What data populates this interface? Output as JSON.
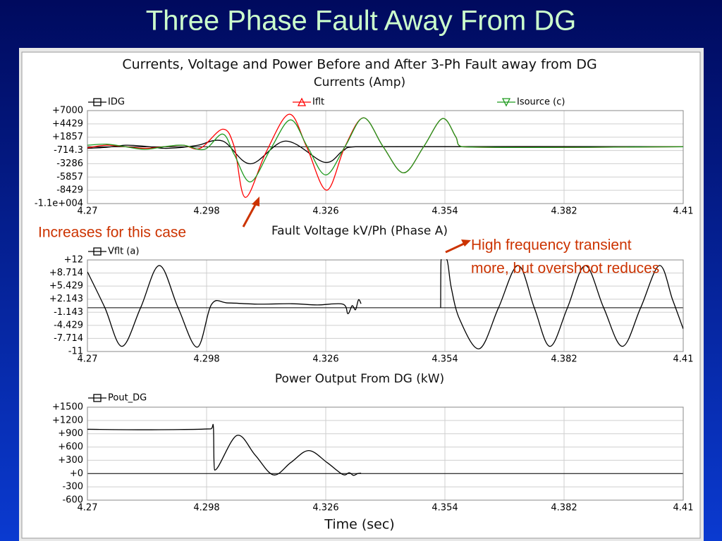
{
  "title": "Three Phase Fault Away From DG",
  "panel_title": "Currents, Voltage and Power Before and After 3-Ph Fault away from DG",
  "annotations": [
    "Increases for this case",
    "High frequency transient",
    "more, but overshoot reduces"
  ],
  "chart_data": [
    {
      "type": "line",
      "title": "Currents (Amp)",
      "xlim": [
        4.27,
        4.41
      ],
      "xticks": [
        4.27,
        4.298,
        4.326,
        4.354,
        4.382,
        4.41
      ],
      "ylim": [
        -11000,
        7000
      ],
      "yticks": [
        {
          "value": 7000,
          "label": "+7000"
        },
        {
          "value": 4429,
          "label": "+4429"
        },
        {
          "value": 1857,
          "label": "+1857"
        },
        {
          "value": -714.3,
          "label": "-714.3"
        },
        -3286,
        -5857,
        -8429,
        {
          "value": -11000,
          "label": "-1.1e+004"
        }
      ],
      "grid": true,
      "series": [
        {
          "name": "IDG",
          "color": "#000000",
          "marker": "square",
          "x": [
            4.27,
            4.2745,
            4.279,
            4.2835,
            4.288,
            4.2925,
            4.296,
            4.3018,
            4.3083,
            4.3166,
            4.3257,
            4.33,
            4.333,
            4.41
          ],
          "values": [
            -300,
            -100,
            300,
            100,
            -300,
            -100,
            300,
            1100,
            -3300,
            1100,
            -3000,
            -800,
            0,
            0
          ]
        },
        {
          "name": "Iflt",
          "color": "#ff0000",
          "marker": "triangle-up",
          "x": [
            4.27,
            4.2745,
            4.279,
            4.2835,
            4.288,
            4.2925,
            4.2965,
            4.3018,
            4.3045,
            4.3071,
            4.312,
            4.3174,
            4.3215,
            4.3262,
            4.3305,
            4.3349,
            4.3395,
            4.3443,
            4.349,
            4.3534,
            4.3565,
            4.358,
            4.41
          ],
          "values": [
            -200,
            300,
            0,
            -300,
            0,
            300,
            -300,
            3400,
            0,
            -9800,
            -1000,
            6300,
            0,
            -8400,
            0,
            5600,
            0,
            -5050,
            0,
            5450,
            2000,
            0,
            0
          ]
        },
        {
          "name": "Isource (c)",
          "color": "#1e9a1e",
          "marker": "triangle-down",
          "x": [
            4.27,
            4.2745,
            4.279,
            4.2835,
            4.288,
            4.2925,
            4.2975,
            4.3018,
            4.3045,
            4.3083,
            4.313,
            4.3177,
            4.3217,
            4.326,
            4.3305,
            4.3349,
            4.3395,
            4.3443,
            4.349,
            4.3534,
            4.3565,
            4.358,
            4.41
          ],
          "values": [
            300,
            500,
            0,
            -500,
            0,
            300,
            -500,
            2450,
            -1500,
            -6800,
            -500,
            5200,
            0,
            -5450,
            0,
            5600,
            0,
            -5050,
            0,
            5450,
            2000,
            0,
            0
          ]
        }
      ]
    },
    {
      "type": "line",
      "title": "Fault Voltage kV/Ph (Phase A)",
      "xlim": [
        4.27,
        4.41
      ],
      "xticks": [
        4.27,
        4.298,
        4.326,
        4.354,
        4.382,
        4.41
      ],
      "ylim": [
        -11,
        12
      ],
      "yticks": [
        {
          "value": 12,
          "label": "+12"
        },
        {
          "value": 8.714,
          "label": "+8.714"
        },
        {
          "value": 5.429,
          "label": "+5.429"
        },
        {
          "value": 2.143,
          "label": "+2.143"
        },
        -1.143,
        -4.429,
        -7.714,
        -11
      ],
      "grid": true,
      "series": [
        {
          "name": "Vflt (a)",
          "color": "#000000",
          "marker": "square",
          "x": [
            4.27,
            4.2741,
            4.2781,
            4.2825,
            4.2869,
            4.2913,
            4.2958,
            4.2992,
            4.303,
            4.31,
            4.318,
            4.324,
            4.33,
            4.3312,
            4.3322,
            4.333,
            4.3337,
            4.3343,
            4.344,
            4.353,
            4.3531,
            4.3545,
            4.3555,
            4.3575,
            4.3621,
            4.3666,
            4.3712,
            4.375,
            4.3787,
            4.3828,
            4.387,
            4.3913,
            4.3957,
            4.4,
            4.4044,
            4.4075,
            4.41
          ],
          "values": [
            9,
            0,
            -9.7,
            0,
            10.6,
            0,
            -9.9,
            0.9,
            1.2,
            0.9,
            1.0,
            0.7,
            0.9,
            -1.5,
            0.5,
            -0.5,
            2,
            1.0,
            null,
            0,
            12,
            12,
            5,
            -3,
            -10.3,
            0,
            10.6,
            0,
            -9.7,
            0,
            10.6,
            0,
            -9.7,
            0,
            10.6,
            2,
            -5.3
          ]
        }
      ]
    },
    {
      "type": "line",
      "title": "Power Output From DG (kW)",
      "x_label": "Time (sec)",
      "xlim": [
        4.27,
        4.41
      ],
      "xticks": [
        4.27,
        4.298,
        4.326,
        4.354,
        4.382,
        4.41
      ],
      "ylim": [
        -600,
        1500
      ],
      "yticks": [
        {
          "value": 1500,
          "label": "+1500"
        },
        {
          "value": 1200,
          "label": "+1200"
        },
        {
          "value": 900,
          "label": "+900"
        },
        {
          "value": 600,
          "label": "+600"
        },
        {
          "value": 300,
          "label": "+300"
        },
        {
          "value": 0,
          "label": "+0"
        },
        -300,
        -600
      ],
      "grid": true,
      "series": [
        {
          "name": "Pout_DG",
          "color": "#000000",
          "marker": "square",
          "x": [
            4.27,
            4.285,
            4.299,
            4.2996,
            4.2999,
            4.3051,
            4.3094,
            4.3137,
            4.3178,
            4.322,
            4.3263,
            4.33,
            4.3315,
            4.3325,
            4.3335,
            4.3343
          ],
          "values": [
            1000,
            990,
            1010,
            1050,
            80,
            860,
            420,
            -30,
            250,
            520,
            250,
            -20,
            20,
            -40,
            0,
            10
          ]
        }
      ]
    }
  ]
}
